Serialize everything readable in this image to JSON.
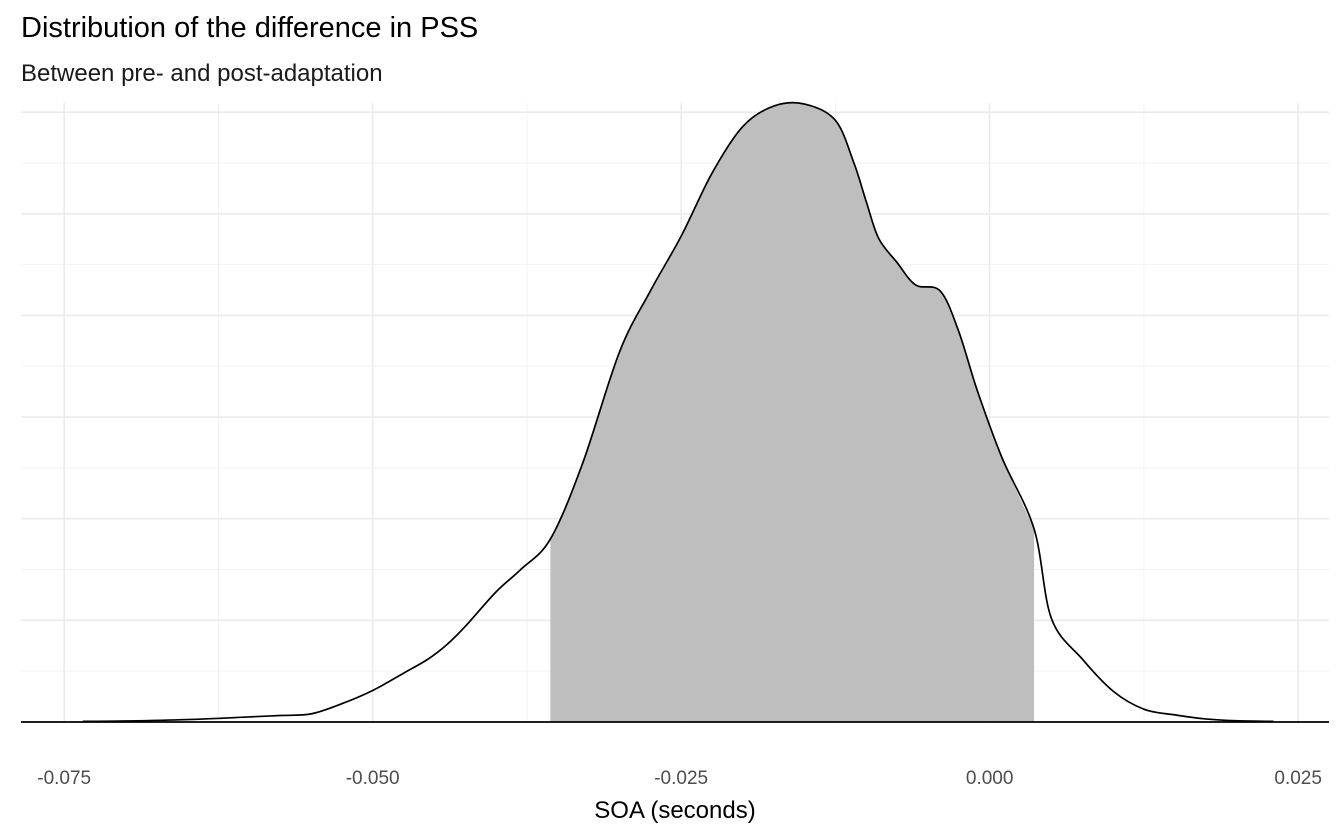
{
  "chart_data": {
    "type": "area",
    "title": "Distribution of the difference in PSS",
    "subtitle": "Between pre- and post-adaptation",
    "xlabel": "SOA (seconds)",
    "ylabel": "",
    "xlim": [
      -0.0785,
      0.0275
    ],
    "ylim": [
      0,
      3.05
    ],
    "x_ticks": [
      -0.075,
      -0.05,
      -0.025,
      0.0,
      0.025
    ],
    "x_tick_labels": [
      "-0.075",
      "-0.050",
      "-0.025",
      "0.000",
      "0.025"
    ],
    "y_ticks_shown": false,
    "grid": true,
    "legend": "none",
    "shaded_interval": [
      -0.0356,
      0.0036
    ],
    "density_curve": {
      "x": [
        -0.0735,
        -0.07,
        -0.065,
        -0.06,
        -0.0575,
        -0.055,
        -0.0525,
        -0.05,
        -0.0475,
        -0.0455,
        -0.044,
        -0.0425,
        -0.04,
        -0.038,
        -0.0356,
        -0.033,
        -0.03,
        -0.0275,
        -0.025,
        -0.0225,
        -0.02,
        -0.0175,
        -0.015,
        -0.0125,
        -0.011,
        -0.01,
        -0.009,
        -0.0075,
        -0.006,
        -0.004,
        -0.0025,
        -0.001,
        0.001,
        0.0036,
        0.005,
        0.0075,
        0.01,
        0.0125,
        0.015,
        0.0175,
        0.02,
        0.023
      ],
      "y": [
        0.003,
        0.005,
        0.012,
        0.025,
        0.032,
        0.04,
        0.09,
        0.155,
        0.24,
        0.31,
        0.38,
        0.47,
        0.64,
        0.75,
        0.9,
        1.27,
        1.82,
        2.12,
        2.39,
        2.7,
        2.93,
        3.03,
        3.04,
        2.96,
        2.75,
        2.56,
        2.38,
        2.26,
        2.15,
        2.12,
        1.92,
        1.63,
        1.3,
        0.95,
        0.51,
        0.31,
        0.152,
        0.063,
        0.035,
        0.015,
        0.006,
        0.003
      ]
    }
  }
}
